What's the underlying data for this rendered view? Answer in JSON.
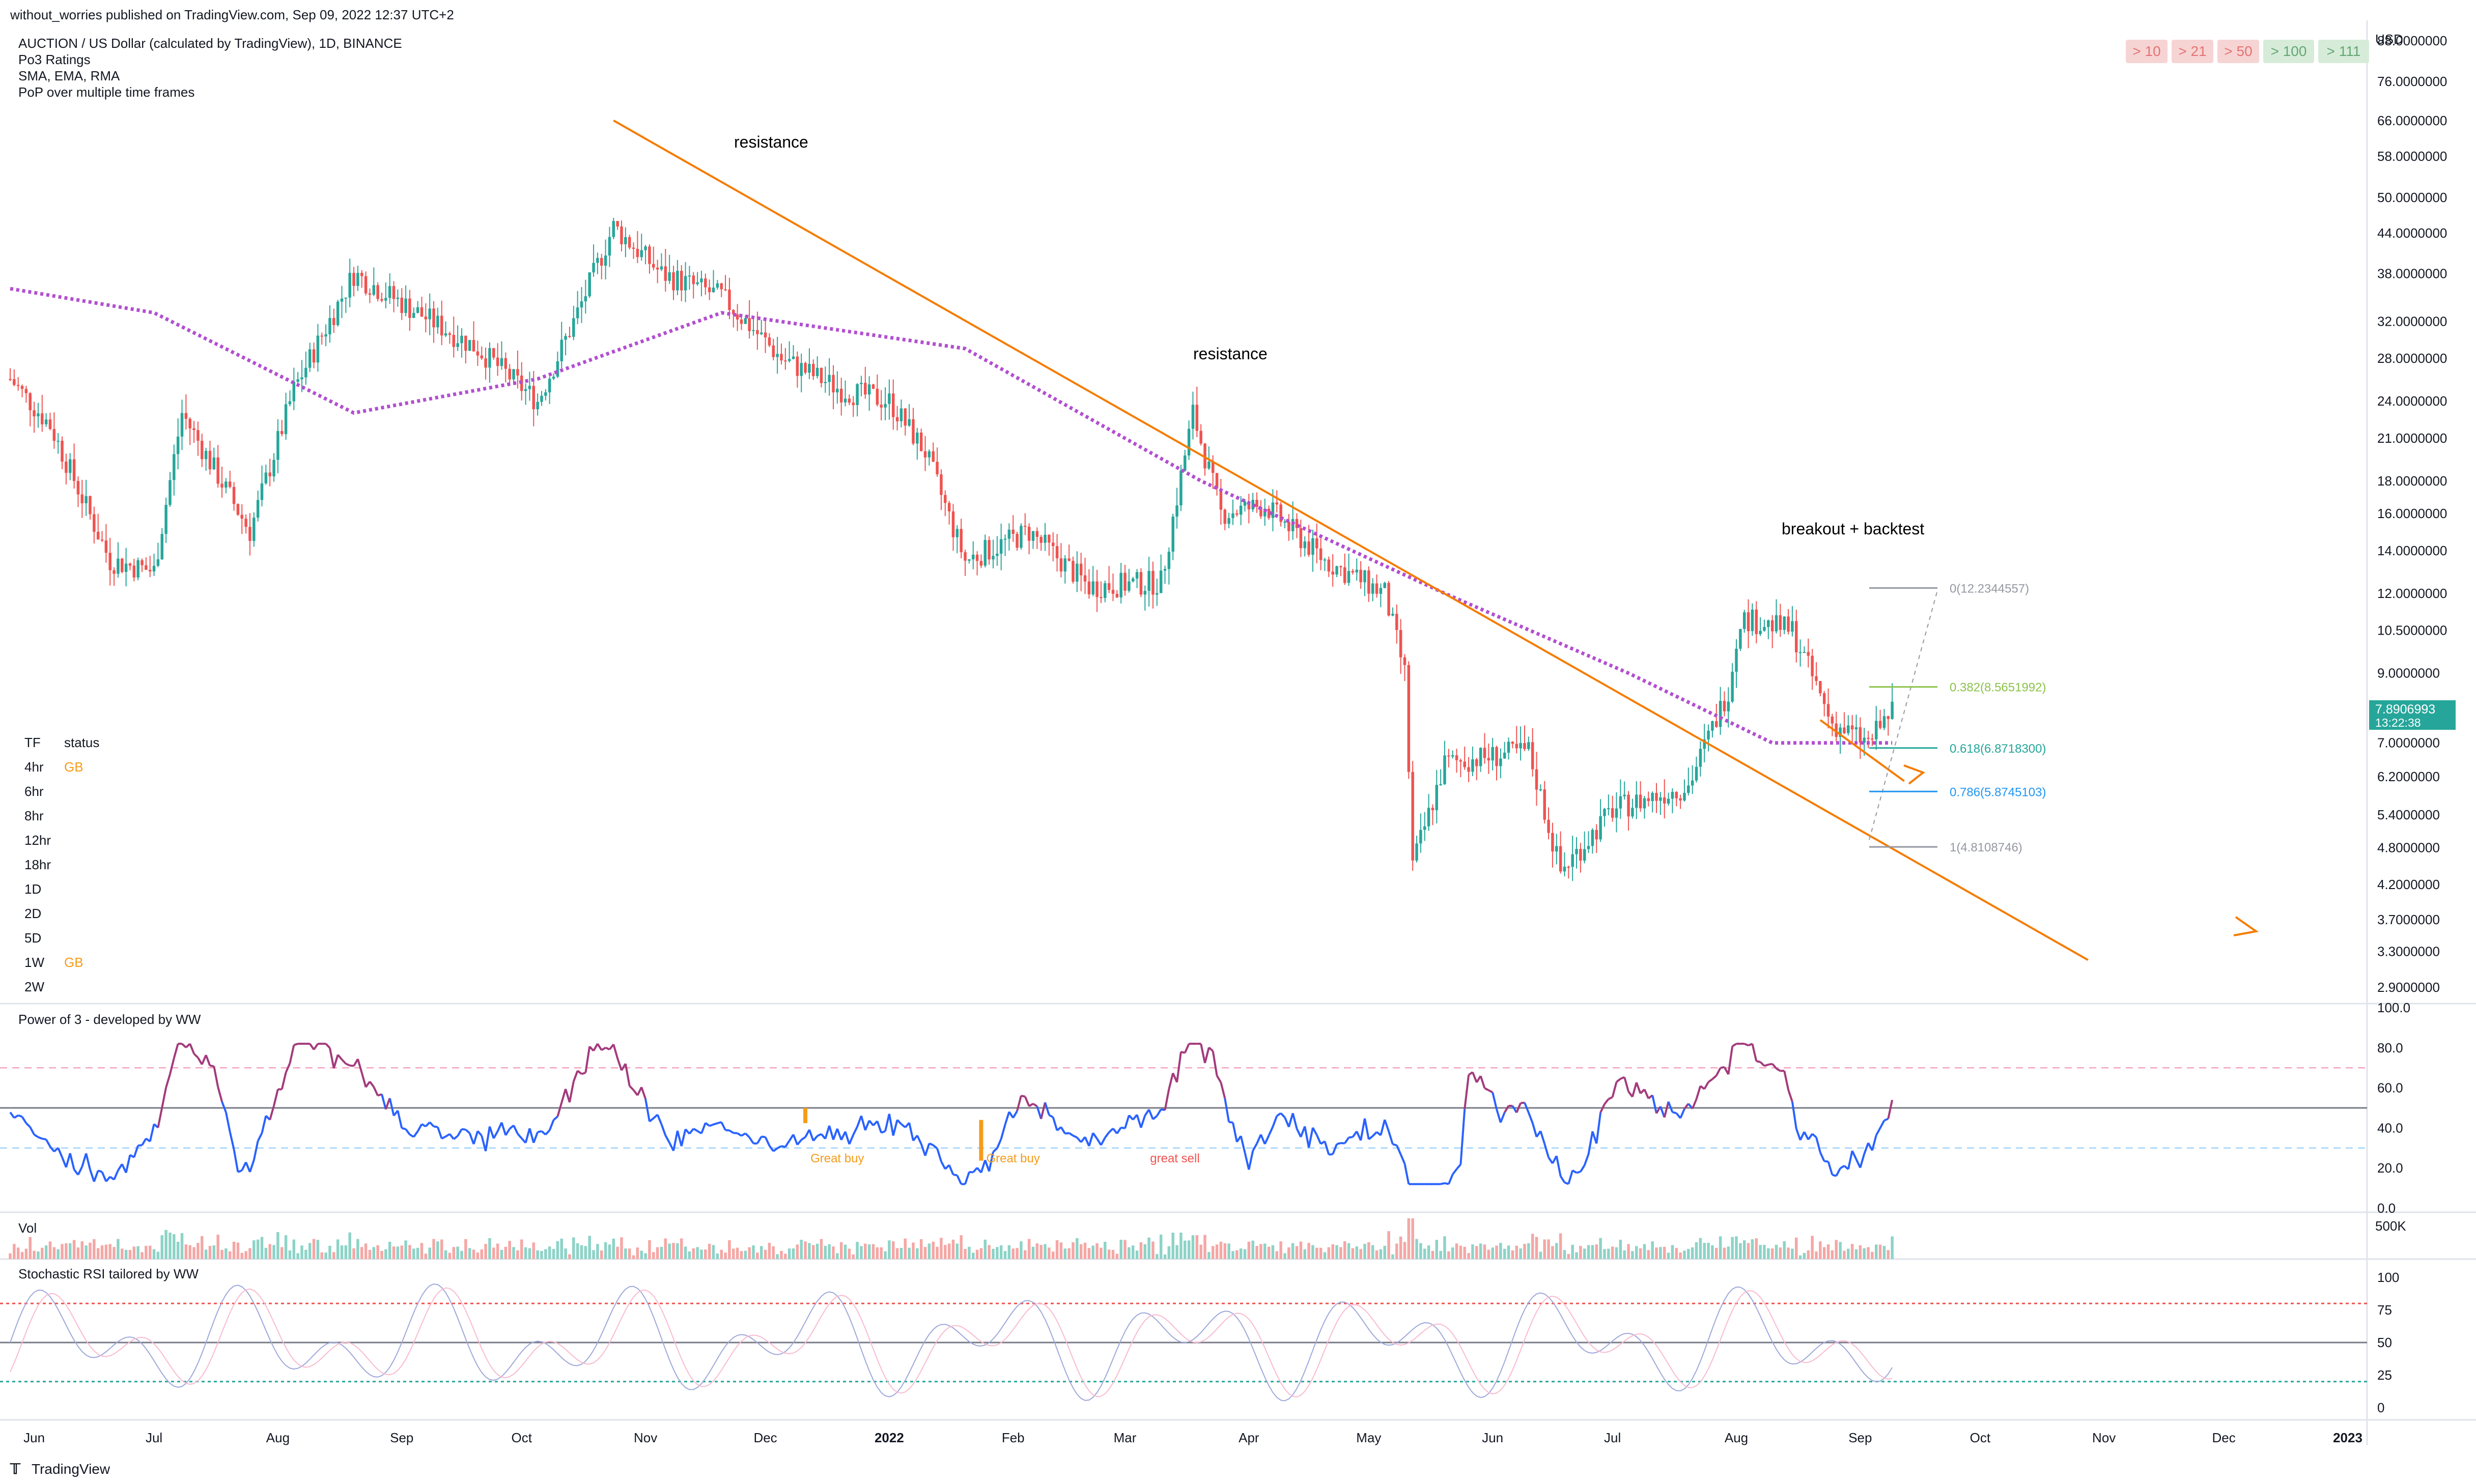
{
  "header": {
    "published": "without_worries published on TradingView.com, Sep 09, 2022 12:37 UTC+2",
    "symbol": "AUCTION / US Dollar (calculated by TradingView), 1D, BINANCE",
    "indicators": [
      "Po3 Ratings",
      "SMA, EMA, RMA",
      "PoP over multiple time frames"
    ]
  },
  "ratings_buttons": [
    {
      "label": "> 10",
      "color": "#f7d4d4",
      "text": "#e57373"
    },
    {
      "label": "> 21",
      "color": "#f7d4d4",
      "text": "#e57373"
    },
    {
      "label": "> 50",
      "color": "#f7d4d4",
      "text": "#e57373"
    },
    {
      "label": "> 100",
      "color": "#d6ecd9",
      "text": "#66a673"
    },
    {
      "label": "> 111",
      "color": "#d6ecd9",
      "text": "#66a673"
    }
  ],
  "price_axis": {
    "currency": "USD",
    "ticks": [
      "88.0000000",
      "76.0000000",
      "66.0000000",
      "58.0000000",
      "50.0000000",
      "44.0000000",
      "38.0000000",
      "32.0000000",
      "28.0000000",
      "24.0000000",
      "21.0000000",
      "18.0000000",
      "16.0000000",
      "14.0000000",
      "12.0000000",
      "10.5000000",
      "9.0000000",
      "7.0000000",
      "6.2000000",
      "5.4000000",
      "4.8000000",
      "4.2000000",
      "3.7000000",
      "3.3000000",
      "2.9000000"
    ],
    "last_price": "7.8906993",
    "countdown": "13:22:38"
  },
  "time_axis": [
    "Jun",
    "Jul",
    "Aug",
    "Sep",
    "Oct",
    "Nov",
    "Dec",
    "2022",
    "Feb",
    "Mar",
    "Apr",
    "May",
    "Jun",
    "Jul",
    "Aug",
    "Sep",
    "Oct",
    "Nov",
    "Dec",
    "2023"
  ],
  "annotations": {
    "resistance1": "resistance",
    "resistance2": "resistance",
    "breakout": "breakout + backtest"
  },
  "fib_levels": [
    {
      "label": "0(12.2344557)",
      "color": "#9598a1"
    },
    {
      "label": "0.382(8.5651992)",
      "color": "#8bc34a"
    },
    {
      "label": "0.618(6.8718300)",
      "color": "#26a69a"
    },
    {
      "label": "0.786(5.8745103)",
      "color": "#2196f3"
    },
    {
      "label": "1(4.8108746)",
      "color": "#9598a1"
    }
  ],
  "status_table": {
    "headers": [
      "TF",
      "status"
    ],
    "rows": [
      {
        "tf": "4hr",
        "status": "GB"
      },
      {
        "tf": "6hr",
        "status": ""
      },
      {
        "tf": "8hr",
        "status": ""
      },
      {
        "tf": "12hr",
        "status": ""
      },
      {
        "tf": "18hr",
        "status": ""
      },
      {
        "tf": "1D",
        "status": ""
      },
      {
        "tf": "2D",
        "status": ""
      },
      {
        "tf": "5D",
        "status": ""
      },
      {
        "tf": "1W",
        "status": "GB"
      },
      {
        "tf": "2W",
        "status": ""
      }
    ]
  },
  "power_panel": {
    "title": "Power of 3 - developed by WW",
    "ticks": [
      "100.0",
      "80.0",
      "60.0",
      "40.0",
      "20.0",
      "0.0"
    ],
    "labels": [
      "Great buy",
      "Great buy",
      "great sell"
    ]
  },
  "vol_panel": {
    "title": "Vol",
    "tick": "500K"
  },
  "stoch_panel": {
    "title": "Stochastic RSI tailored by WW",
    "ticks": [
      "100",
      "75",
      "50",
      "25",
      "0"
    ]
  },
  "footer": {
    "brand": "TradingView"
  },
  "colors": {
    "up": "#26a69a",
    "down": "#ef5350",
    "trend": "#f57c00",
    "sma": "#b24fd0",
    "osc_low": "#2962ff",
    "osc_high": "#d32f2f"
  },
  "chart_data": {
    "type": "candlestick",
    "symbol": "AUCTION/USD",
    "timeframe": "1D",
    "scale": "log",
    "ylim": [
      2.9,
      88
    ],
    "keypoints": [
      {
        "date": "2021-05-26",
        "close": 26
      },
      {
        "date": "2021-06-05",
        "close": 22
      },
      {
        "date": "2021-06-20",
        "close": 13.5
      },
      {
        "date": "2021-07-01",
        "close": 13
      },
      {
        "date": "2021-07-08",
        "close": 23
      },
      {
        "date": "2021-07-25",
        "close": 15
      },
      {
        "date": "2021-08-05",
        "close": 25
      },
      {
        "date": "2021-08-20",
        "close": 38
      },
      {
        "date": "2021-09-05",
        "close": 33
      },
      {
        "date": "2021-09-20",
        "close": 29
      },
      {
        "date": "2021-10-05",
        "close": 24
      },
      {
        "date": "2021-10-15",
        "close": 33
      },
      {
        "date": "2021-10-24",
        "close": 45
      },
      {
        "date": "2021-11-05",
        "close": 38
      },
      {
        "date": "2021-11-20",
        "close": 35
      },
      {
        "date": "2021-12-05",
        "close": 28
      },
      {
        "date": "2021-12-20",
        "close": 25
      },
      {
        "date": "2022-01-01",
        "close": 24
      },
      {
        "date": "2022-01-10",
        "close": 20
      },
      {
        "date": "2022-01-20",
        "close": 13.5
      },
      {
        "date": "2022-02-05",
        "close": 15
      },
      {
        "date": "2022-02-20",
        "close": 12.3
      },
      {
        "date": "2022-03-10",
        "close": 12.5
      },
      {
        "date": "2022-03-18",
        "close": 23
      },
      {
        "date": "2022-03-25",
        "close": 16
      },
      {
        "date": "2022-04-05",
        "close": 16.5
      },
      {
        "date": "2022-04-20",
        "close": 13.5
      },
      {
        "date": "2022-05-05",
        "close": 12
      },
      {
        "date": "2022-05-10",
        "close": 9
      },
      {
        "date": "2022-05-12",
        "close": 4.5
      },
      {
        "date": "2022-05-20",
        "close": 6.5
      },
      {
        "date": "2022-06-10",
        "close": 6.8
      },
      {
        "date": "2022-06-18",
        "close": 4.4
      },
      {
        "date": "2022-07-01",
        "close": 5.5
      },
      {
        "date": "2022-07-20",
        "close": 6
      },
      {
        "date": "2022-07-30",
        "close": 8.5
      },
      {
        "date": "2022-08-02",
        "close": 11
      },
      {
        "date": "2022-08-15",
        "close": 10.5
      },
      {
        "date": "2022-08-25",
        "close": 7.5
      },
      {
        "date": "2022-09-03",
        "close": 7
      },
      {
        "date": "2022-09-09",
        "close": 7.89
      }
    ],
    "series": [
      {
        "name": "",
        "type": "sma",
        "values": [
          {
            "date": "2021-05-26",
            "value": 36
          },
          {
            "date": "2021-07-01",
            "value": 33
          },
          {
            "date": "2021-08-20",
            "value": 23
          },
          {
            "date": "2021-10-05",
            "value": 26
          },
          {
            "date": "2021-11-20",
            "value": 33
          },
          {
            "date": "2022-01-20",
            "value": 29
          },
          {
            "date": "2022-03-20",
            "value": 18
          },
          {
            "date": "2022-05-20",
            "value": 12
          },
          {
            "date": "2022-07-05",
            "value": 9
          },
          {
            "date": "2022-08-10",
            "value": 7
          },
          {
            "date": "2022-09-09",
            "value": 7
          }
        ]
      }
    ]
  }
}
